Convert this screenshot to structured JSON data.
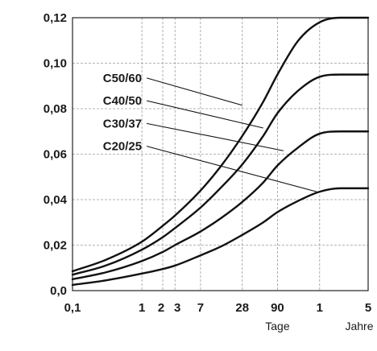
{
  "chart_data": {
    "type": "line",
    "x_scale": "log",
    "xlim": [
      0.1,
      1825
    ],
    "ylim": [
      0,
      0.12
    ],
    "grid": true,
    "x_ticks": [
      {
        "label": "0,1",
        "days": 0.1
      },
      {
        "label": "1",
        "days": 1
      },
      {
        "label": "2",
        "days": 2
      },
      {
        "label": "3",
        "days": 3
      },
      {
        "label": "7",
        "days": 7
      },
      {
        "label": "28",
        "days": 28
      },
      {
        "label": "90",
        "days": 90
      },
      {
        "label": "1",
        "days": 365
      },
      {
        "label": "5",
        "days": 1825
      }
    ],
    "x_units": [
      {
        "label": "Tage",
        "days": 90
      },
      {
        "label": "Jahre",
        "days": 1825
      }
    ],
    "y_ticks": [
      {
        "label": "0,0",
        "value": 0
      },
      {
        "label": "0,02",
        "value": 0.02
      },
      {
        "label": "0,04",
        "value": 0.04
      },
      {
        "label": "0,06",
        "value": 0.06
      },
      {
        "label": "0,08",
        "value": 0.08
      },
      {
        "label": "0,10",
        "value": 0.1
      },
      {
        "label": "0,12",
        "value": 0.12
      }
    ],
    "series": [
      {
        "name": "C50/60",
        "label_days": 1.0,
        "label_value": 0.0935,
        "leader_to_days": 28,
        "leader_to_value": 0.0815,
        "x": [
          0.1,
          0.3,
          1,
          2,
          3,
          7,
          14,
          28,
          56,
          90,
          180,
          365,
          730,
          1825
        ],
        "y": [
          0.0085,
          0.0135,
          0.0215,
          0.0285,
          0.033,
          0.044,
          0.055,
          0.068,
          0.083,
          0.095,
          0.11,
          0.118,
          0.12,
          0.12
        ]
      },
      {
        "name": "C40/50",
        "label_days": 1.0,
        "label_value": 0.0835,
        "leader_to_days": 56,
        "leader_to_value": 0.0715,
        "x": [
          0.1,
          0.3,
          1,
          2,
          3,
          7,
          14,
          28,
          56,
          90,
          180,
          365,
          730,
          1825
        ],
        "y": [
          0.007,
          0.011,
          0.018,
          0.0235,
          0.0275,
          0.0365,
          0.0455,
          0.0555,
          0.068,
          0.078,
          0.088,
          0.094,
          0.095,
          0.095
        ]
      },
      {
        "name": "C30/37",
        "label_days": 1.0,
        "label_value": 0.0735,
        "leader_to_days": 110,
        "leader_to_value": 0.0615,
        "x": [
          0.1,
          0.3,
          1,
          2,
          3,
          7,
          14,
          28,
          56,
          90,
          180,
          365,
          730,
          1825
        ],
        "y": [
          0.005,
          0.008,
          0.013,
          0.017,
          0.02,
          0.026,
          0.032,
          0.039,
          0.0475,
          0.055,
          0.063,
          0.069,
          0.07,
          0.07
        ]
      },
      {
        "name": "C20/25",
        "label_days": 1.0,
        "label_value": 0.0635,
        "leader_to_days": 330,
        "leader_to_value": 0.0435,
        "x": [
          0.1,
          0.3,
          1,
          2,
          3,
          7,
          14,
          28,
          56,
          90,
          180,
          365,
          730,
          1825
        ],
        "y": [
          0.0025,
          0.0045,
          0.0075,
          0.0095,
          0.011,
          0.0155,
          0.0195,
          0.0245,
          0.03,
          0.0345,
          0.0395,
          0.0435,
          0.045,
          0.045
        ]
      }
    ]
  }
}
